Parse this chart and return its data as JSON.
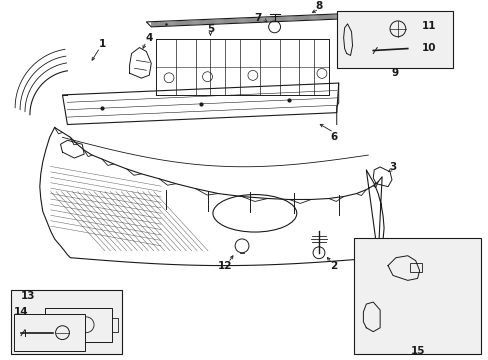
{
  "bg_color": "#ffffff",
  "line_color": "#1a1a1a",
  "box_fill": "#f0f0f0",
  "fig_width": 4.89,
  "fig_height": 3.6,
  "dpi": 100
}
